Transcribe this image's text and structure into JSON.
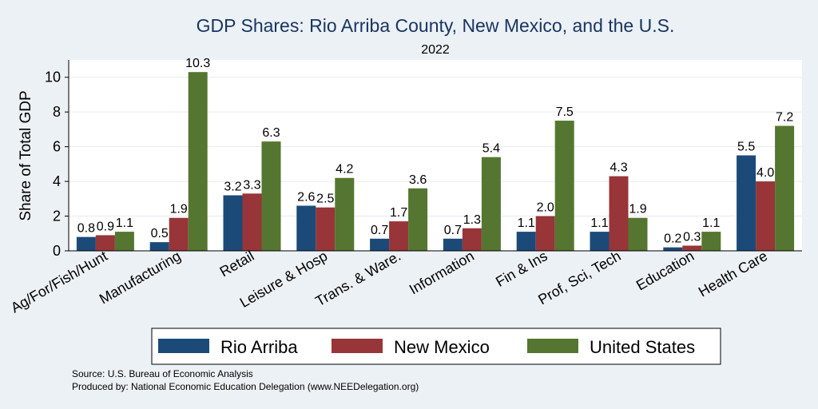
{
  "chart_data": {
    "type": "bar",
    "title": "GDP Shares: Rio Arriba County, New Mexico, and the U.S.",
    "subtitle": "2022",
    "xlabel": "",
    "ylabel": "Share of Total GDP",
    "ylim": [
      0,
      11
    ],
    "yticks": [
      0,
      2,
      4,
      6,
      8,
      10
    ],
    "grid": true,
    "legend_position": "bottom",
    "categories": [
      "Ag/For/Fish/Hunt",
      "Manufacturing",
      "Retail",
      "Leisure & Hosp",
      "Trans. & Ware.",
      "Information",
      "Fin & Ins",
      "Prof, Sci, Tech",
      "Education",
      "Health Care"
    ],
    "series": [
      {
        "name": "Rio Arriba",
        "color": "#1c4a78",
        "values": [
          0.8,
          0.5,
          3.2,
          2.6,
          0.7,
          0.7,
          1.1,
          1.1,
          0.2,
          5.5
        ]
      },
      {
        "name": "New Mexico",
        "color": "#973538",
        "values": [
          0.9,
          1.9,
          3.3,
          2.5,
          1.7,
          1.3,
          2.0,
          4.3,
          0.3,
          4.0
        ]
      },
      {
        "name": "United States",
        "color": "#557630",
        "values": [
          1.1,
          10.3,
          6.3,
          4.2,
          3.6,
          5.4,
          7.5,
          1.9,
          1.1,
          7.2
        ]
      }
    ],
    "notes": [
      "Source: U.S. Bureau of Economic Analysis",
      "Produced by: National Economic Education Delegation (www.NEEDelegation.org)"
    ]
  },
  "colors": {
    "background": "#ecf1f6",
    "plot_background": "#ffffff",
    "title": "#1a3560",
    "grid": "#e6eaf0"
  }
}
